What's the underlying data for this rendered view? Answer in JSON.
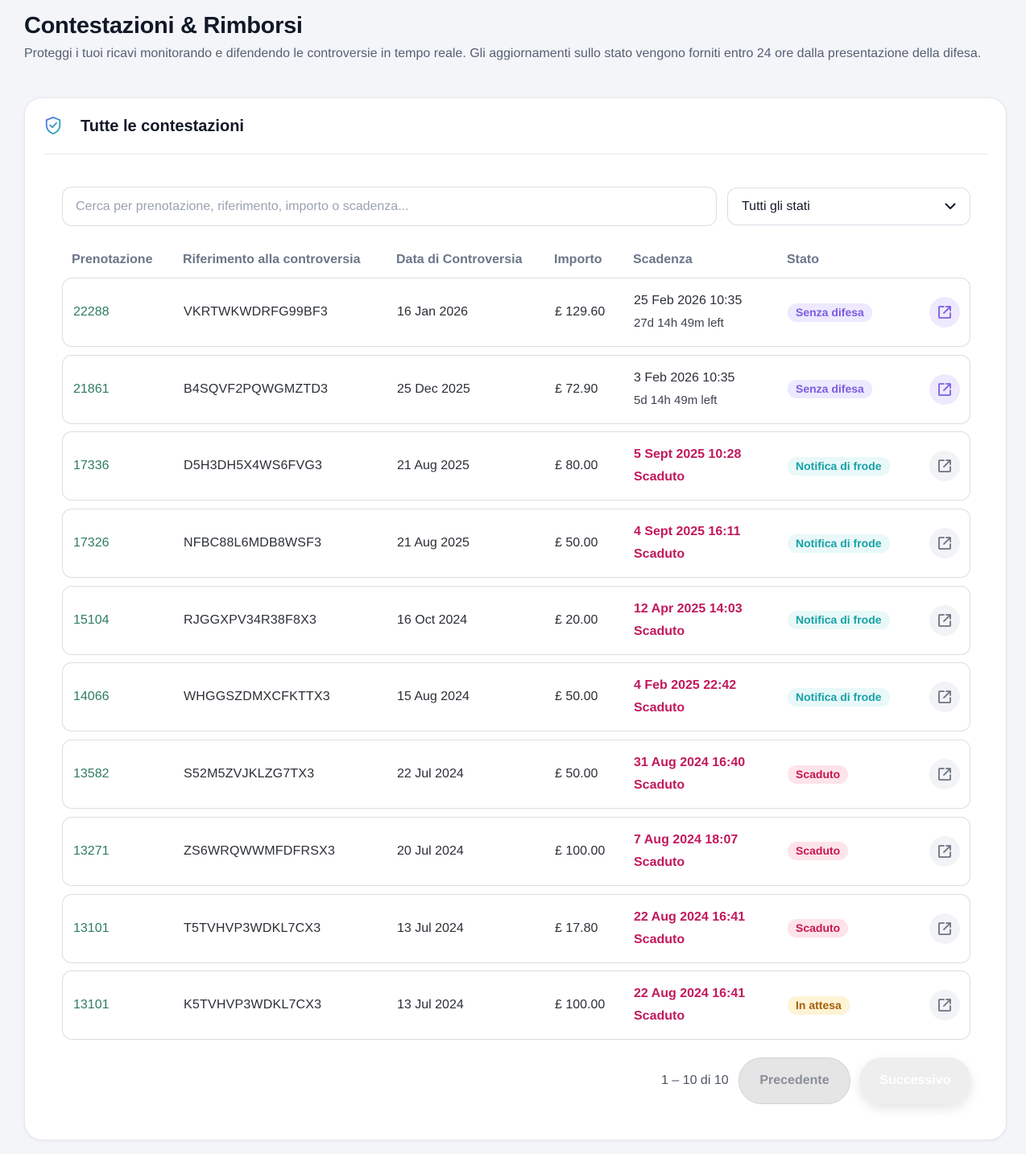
{
  "page": {
    "title": "Contestazioni & Rimborsi",
    "subtitle": "Proteggi i tuoi ricavi monitorando e difendendo le controversie in tempo reale. Gli aggiornamenti sullo stato vengono forniti entro 24 ore dalla presentazione della difesa."
  },
  "card": {
    "title": "Tutte le contestazioni",
    "icon": "shield-check-icon"
  },
  "filters": {
    "search_placeholder": "Cerca per prenotazione, riferimento, importo o scadenza...",
    "search_value": "",
    "status_selected": "Tutti gli stati"
  },
  "table": {
    "columns": {
      "booking": "Prenotazione",
      "reference": "Riferimento alla controversia",
      "date": "Data di Controversia",
      "amount": "Importo",
      "deadline": "Scadenza",
      "status": "Stato"
    },
    "rows": [
      {
        "booking": "22288",
        "reference": "VKRTWKWDRFG99BF3",
        "date": "16 Jan 2026",
        "amount": "£ 129.60",
        "deadline": "25 Feb 2026 10:35",
        "deadline_note": "27d 14h 49m left",
        "expired": false,
        "status": "Senza difesa",
        "status_kind": "purple"
      },
      {
        "booking": "21861",
        "reference": "B4SQVF2PQWGMZTD3",
        "date": "25 Dec 2025",
        "amount": "£ 72.90",
        "deadline": "3 Feb 2026 10:35",
        "deadline_note": "5d 14h 49m left",
        "expired": false,
        "status": "Senza difesa",
        "status_kind": "purple"
      },
      {
        "booking": "17336",
        "reference": "D5H3DH5X4WS6FVG3",
        "date": "21 Aug 2025",
        "amount": "£ 80.00",
        "deadline": "5 Sept 2025 10:28",
        "deadline_note": "Scaduto",
        "expired": true,
        "status": "Notifica di frode",
        "status_kind": "teal"
      },
      {
        "booking": "17326",
        "reference": "NFBC88L6MDB8WSF3",
        "date": "21 Aug 2025",
        "amount": "£ 50.00",
        "deadline": "4 Sept 2025 16:11",
        "deadline_note": "Scaduto",
        "expired": true,
        "status": "Notifica di frode",
        "status_kind": "teal"
      },
      {
        "booking": "15104",
        "reference": "RJGGXPV34R38F8X3",
        "date": "16 Oct 2024",
        "amount": "£ 20.00",
        "deadline": "12 Apr 2025 14:03",
        "deadline_note": "Scaduto",
        "expired": true,
        "status": "Notifica di frode",
        "status_kind": "teal"
      },
      {
        "booking": "14066",
        "reference": "WHGGSZDMXCFKTTX3",
        "date": "15 Aug 2024",
        "amount": "£ 50.00",
        "deadline": "4 Feb 2025 22:42",
        "deadline_note": "Scaduto",
        "expired": true,
        "status": "Notifica di frode",
        "status_kind": "teal"
      },
      {
        "booking": "13582",
        "reference": "S52M5ZVJKLZG7TX3",
        "date": "22 Jul 2024",
        "amount": "£ 50.00",
        "deadline": "31 Aug 2024 16:40",
        "deadline_note": "Scaduto",
        "expired": true,
        "status": "Scaduto",
        "status_kind": "red"
      },
      {
        "booking": "13271",
        "reference": "ZS6WRQWWMFDFRSX3",
        "date": "20 Jul 2024",
        "amount": "£ 100.00",
        "deadline": "7 Aug 2024 18:07",
        "deadline_note": "Scaduto",
        "expired": true,
        "status": "Scaduto",
        "status_kind": "red"
      },
      {
        "booking": "13101",
        "reference": "T5TVHVP3WDKL7CX3",
        "date": "13 Jul 2024",
        "amount": "£ 17.80",
        "deadline": "22 Aug 2024 16:41",
        "deadline_note": "Scaduto",
        "expired": true,
        "status": "Scaduto",
        "status_kind": "red"
      },
      {
        "booking": "13101",
        "reference": "K5TVHVP3WDKL7CX3",
        "date": "13 Jul 2024",
        "amount": "£ 100.00",
        "deadline": "22 Aug 2024 16:41",
        "deadline_note": "Scaduto",
        "expired": true,
        "status": "In attesa",
        "status_kind": "amber"
      }
    ]
  },
  "pagination": {
    "info": "1 – 10 di 10",
    "prev_label": "Precedente",
    "next_label": "Successivo"
  },
  "colors": {
    "booking_link": "#2f7d5e",
    "expired": "#c2185b",
    "accent_purple": "#7c5ce0"
  }
}
